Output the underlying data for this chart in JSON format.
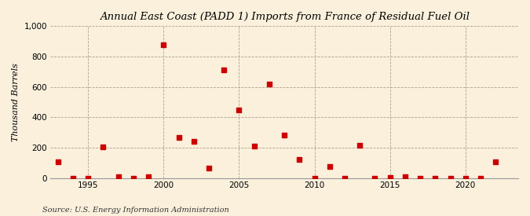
{
  "title": "Annual East Coast (PADD 1) Imports from France of Residual Fuel Oil",
  "ylabel": "Thousand Barrels",
  "source": "Source: U.S. Energy Information Administration",
  "background_color": "#faf0dc",
  "marker_color": "#cc0000",
  "ylim": [
    0,
    1000
  ],
  "yticks": [
    0,
    200,
    400,
    600,
    800,
    1000
  ],
  "ytick_labels": [
    "0",
    "200",
    "400",
    "600",
    "800",
    "1,000"
  ],
  "xticks": [
    1995,
    2000,
    2005,
    2010,
    2015,
    2020
  ],
  "xlim": [
    1992.5,
    2023.5
  ],
  "data": [
    [
      1993,
      104
    ],
    [
      1994,
      0
    ],
    [
      1995,
      0
    ],
    [
      1996,
      207
    ],
    [
      1997,
      10
    ],
    [
      1998,
      0
    ],
    [
      1999,
      10
    ],
    [
      2000,
      875
    ],
    [
      2001,
      265
    ],
    [
      2002,
      240
    ],
    [
      2003,
      65
    ],
    [
      2004,
      710
    ],
    [
      2005,
      448
    ],
    [
      2006,
      210
    ],
    [
      2007,
      618
    ],
    [
      2008,
      285
    ],
    [
      2009,
      120
    ],
    [
      2010,
      0
    ],
    [
      2011,
      75
    ],
    [
      2012,
      0
    ],
    [
      2013,
      215
    ],
    [
      2014,
      0
    ],
    [
      2015,
      5
    ],
    [
      2016,
      10
    ],
    [
      2017,
      0
    ],
    [
      2018,
      0
    ],
    [
      2019,
      0
    ],
    [
      2020,
      0
    ],
    [
      2021,
      0
    ],
    [
      2022,
      107
    ]
  ]
}
